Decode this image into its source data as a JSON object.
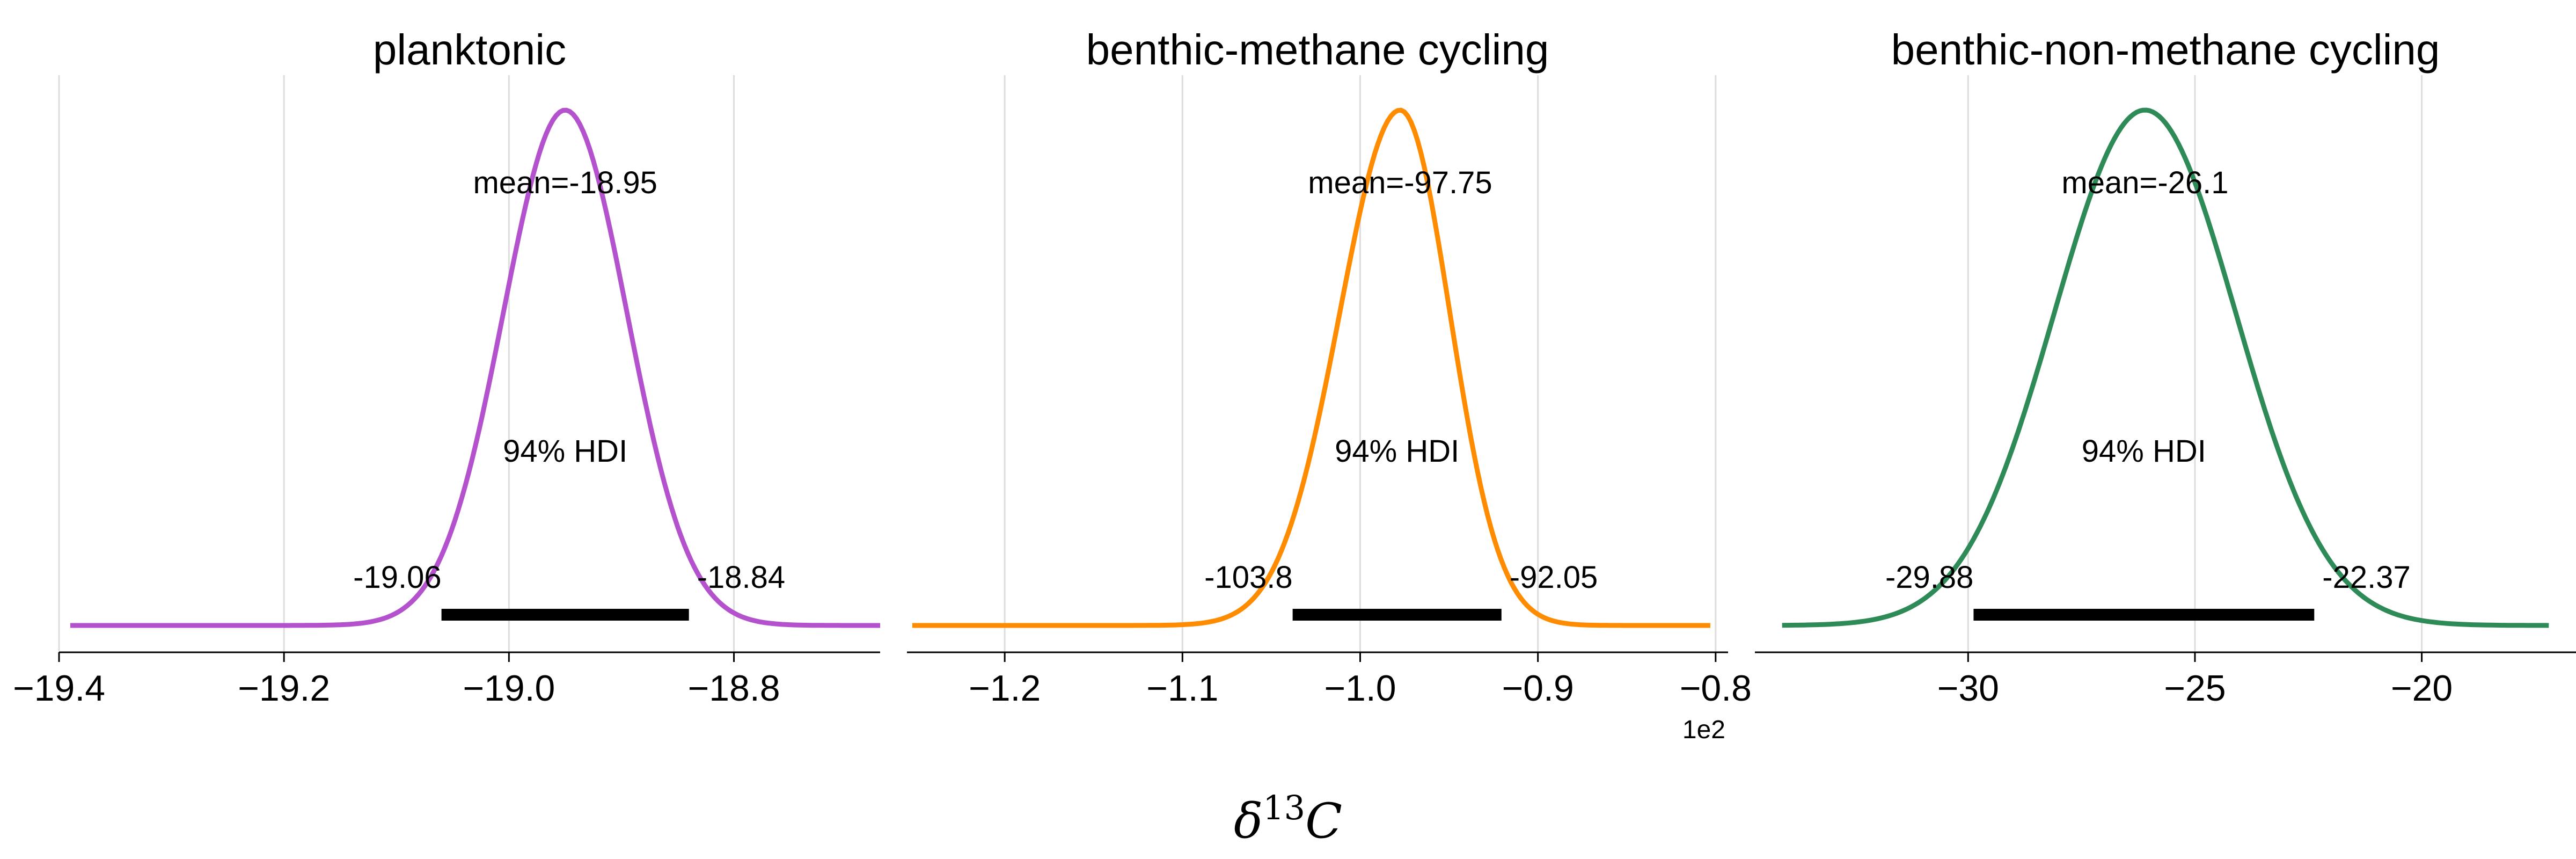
{
  "figure": {
    "xlabel_base": "δ",
    "xlabel_sup": "13",
    "xlabel_var": "C"
  },
  "chart_data": [
    {
      "type": "area",
      "title": "planktonic",
      "color": "#b452cd",
      "xlim": [
        -19.4,
        -18.67
      ],
      "xticks": [
        -19.4,
        -19.2,
        -19.0,
        -18.8
      ],
      "xtick_labels": [
        "−19.4",
        "−19.2",
        "−19.0",
        "−18.8"
      ],
      "offset_text": "",
      "curve": {
        "min": -19.39,
        "max": -18.67,
        "mean": -18.95,
        "sd_left": 0.055,
        "sd_right": 0.055
      },
      "mean_label": "mean=-18.95",
      "hdi_label": "94% HDI",
      "hdi": [
        -19.06,
        -18.84
      ],
      "hdi_low_label": "-19.06",
      "hdi_high_label": "-18.84"
    },
    {
      "type": "area",
      "title": "benthic-methane cycling",
      "color": "#ff8c00",
      "xlim": [
        -125.5,
        -79.3
      ],
      "xticks": [
        -120,
        -110,
        -100,
        -90,
        -80
      ],
      "xtick_labels": [
        "−1.2",
        "−1.1",
        "−1.0",
        "−0.9",
        "−0.8"
      ],
      "offset_text": "1e2",
      "curve": {
        "min": -125.2,
        "max": -80.3,
        "mean": -97.75,
        "sd_left": 3.4,
        "sd_right": 2.8
      },
      "mean_label": "mean=-97.75",
      "hdi_label": "94% HDI",
      "hdi": [
        -103.8,
        -92.05
      ],
      "hdi_low_label": "-103.8",
      "hdi_high_label": "-92.05"
    },
    {
      "type": "area",
      "title": "benthic-non-methane cycling",
      "color": "#2e8b57",
      "xlim": [
        -34.7,
        -16.6
      ],
      "xticks": [
        -30,
        -25,
        -20
      ],
      "xtick_labels": [
        "−30",
        "−25",
        "−20"
      ],
      "offset_text": "",
      "curve": {
        "min": -34.1,
        "max": -17.2,
        "mean": -26.1,
        "sd_left": 2.0,
        "sd_right": 2.0
      },
      "mean_label": "mean=-26.1",
      "hdi_label": "94% HDI",
      "hdi": [
        -29.88,
        -22.37
      ],
      "hdi_low_label": "-29.88",
      "hdi_high_label": "-22.37"
    }
  ]
}
